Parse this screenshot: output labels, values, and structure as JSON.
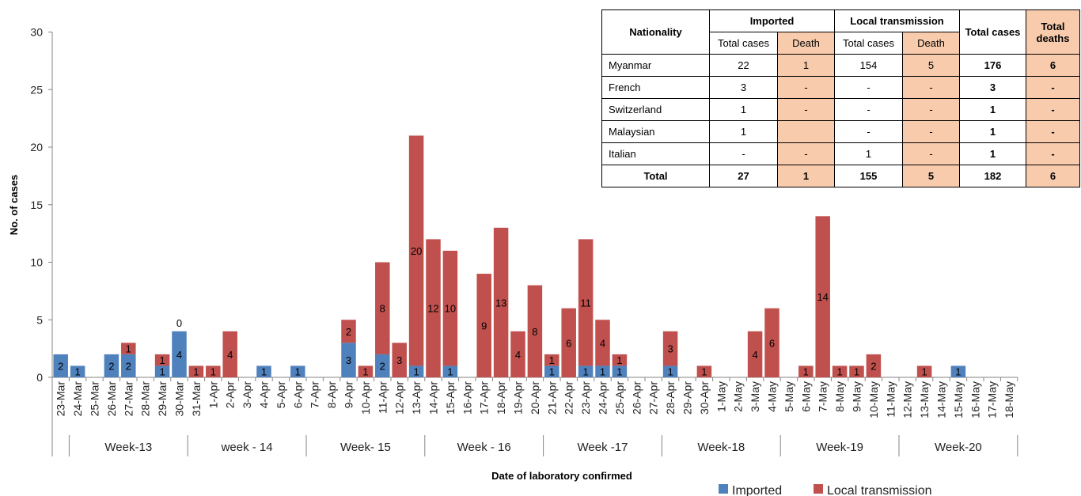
{
  "chart_data": {
    "type": "bar",
    "stacked": true,
    "ylabel": "No. of cases",
    "xlabel": "Date of laboratory confirmed",
    "ylim": [
      0,
      30
    ],
    "yticks": [
      0,
      5,
      10,
      15,
      20,
      25,
      30
    ],
    "legend_position": "bottom-right",
    "categories": [
      "23-Mar",
      "24-Mar",
      "25-Mar",
      "26-Mar",
      "27-Mar",
      "28-Mar",
      "29-Mar",
      "30-Mar",
      "31-Mar",
      "1-Apr",
      "2-Apr",
      "3-Apr",
      "4-Apr",
      "5-Apr",
      "6-Apr",
      "7-Apr",
      "8-Apr",
      "9-Apr",
      "10-Apr",
      "11-Apr",
      "12-Apr",
      "13-Apr",
      "14-Apr",
      "15-Apr",
      "16-Apr",
      "17-Apr",
      "18-Apr",
      "19-Apr",
      "20-Apr",
      "21-Apr",
      "22-Apr",
      "23-Apr",
      "24-Apr",
      "25-Apr",
      "26-Apr",
      "27-Apr",
      "28-Apr",
      "29-Apr",
      "30-Apr",
      "1-May",
      "2-May",
      "3-May",
      "4-May",
      "5-May",
      "6-May",
      "7-May",
      "8-May",
      "9-May",
      "10-May",
      "11-May",
      "12-May",
      "13-May",
      "14-May",
      "15-May",
      "16-May",
      "17-May",
      "18-May"
    ],
    "series": [
      {
        "name": "Imported",
        "color": "#4f81bd",
        "values": [
          2,
          1,
          0,
          2,
          2,
          0,
          1,
          4,
          0,
          0,
          0,
          0,
          1,
          0,
          1,
          0,
          0,
          3,
          0,
          2,
          0,
          1,
          0,
          1,
          0,
          0,
          0,
          0,
          0,
          1,
          0,
          1,
          1,
          1,
          0,
          0,
          1,
          0,
          0,
          0,
          0,
          0,
          0,
          0,
          0,
          0,
          0,
          0,
          0,
          0,
          0,
          0,
          0,
          1,
          0,
          0,
          0
        ]
      },
      {
        "name": "Local transmission",
        "color": "#c0504d",
        "values": [
          0,
          0,
          0,
          0,
          1,
          0,
          1,
          0,
          1,
          1,
          4,
          0,
          0,
          0,
          0,
          0,
          0,
          2,
          1,
          8,
          3,
          20,
          12,
          10,
          0,
          9,
          13,
          4,
          8,
          1,
          6,
          11,
          4,
          1,
          0,
          0,
          3,
          0,
          1,
          0,
          0,
          4,
          6,
          0,
          1,
          14,
          1,
          1,
          2,
          0,
          0,
          1,
          0,
          0,
          0,
          0,
          0
        ]
      }
    ],
    "imported_labels": [
      2,
      1,
      null,
      2,
      2,
      null,
      1,
      4,
      null,
      null,
      null,
      null,
      1,
      null,
      1,
      null,
      null,
      3,
      null,
      2,
      null,
      1,
      null,
      1,
      null,
      null,
      null,
      null,
      null,
      1,
      null,
      1,
      1,
      1,
      null,
      null,
      1,
      null,
      null,
      null,
      null,
      null,
      null,
      null,
      null,
      null,
      null,
      null,
      null,
      null,
      null,
      null,
      null,
      1,
      null,
      null,
      null
    ],
    "local_labels": [
      null,
      null,
      null,
      null,
      1,
      null,
      1,
      0,
      1,
      1,
      4,
      null,
      null,
      null,
      null,
      null,
      null,
      2,
      1,
      8,
      3,
      20,
      12,
      10,
      null,
      9,
      13,
      4,
      8,
      1,
      6,
      11,
      4,
      1,
      null,
      null,
      3,
      null,
      1,
      null,
      null,
      4,
      6,
      null,
      1,
      14,
      1,
      1,
      2,
      null,
      null,
      1,
      null,
      null,
      null,
      null,
      null
    ],
    "weeks": [
      {
        "label": "Week-13",
        "start": 1,
        "end": 7
      },
      {
        "label": "week - 14",
        "start": 8,
        "end": 14
      },
      {
        "label": "Week- 15",
        "start": 15,
        "end": 21
      },
      {
        "label": "Week - 16",
        "start": 22,
        "end": 28
      },
      {
        "label": "Week -17",
        "start": 29,
        "end": 35
      },
      {
        "label": "Week-18",
        "start": 36,
        "end": 42
      },
      {
        "label": "Week-19",
        "start": 43,
        "end": 49
      },
      {
        "label": "Week-20",
        "start": 50,
        "end": 56
      }
    ]
  },
  "table": {
    "header": {
      "nationality": "Nationality",
      "imported": "Imported",
      "local": "Local transmission",
      "total_cases": "Total cases",
      "total_deaths": "Total deaths",
      "sub_total_cases": "Total cases",
      "sub_death": "Death"
    },
    "rows": [
      {
        "name": "Myanmar",
        "imp_cases": "22",
        "imp_death": "1",
        "loc_cases": "154",
        "loc_death": "5",
        "total_cases": "176",
        "total_deaths": "6"
      },
      {
        "name": "French",
        "imp_cases": "3",
        "imp_death": "-",
        "loc_cases": "-",
        "loc_death": "-",
        "total_cases": "3",
        "total_deaths": "-"
      },
      {
        "name": "Switzerland",
        "imp_cases": "1",
        "imp_death": "-",
        "loc_cases": "-",
        "loc_death": "-",
        "total_cases": "1",
        "total_deaths": "-"
      },
      {
        "name": "Malaysian",
        "imp_cases": "1",
        "imp_death": "",
        "loc_cases": "-",
        "loc_death": "-",
        "total_cases": "1",
        "total_deaths": "-"
      },
      {
        "name": "Italian",
        "imp_cases": "-",
        "imp_death": "-",
        "loc_cases": "1",
        "loc_death": "-",
        "total_cases": "1",
        "total_deaths": "-"
      }
    ],
    "total_row": {
      "name": "Total",
      "imp_cases": "27",
      "imp_death": "1",
      "loc_cases": "155",
      "loc_death": "5",
      "total_cases": "182",
      "total_deaths": "6"
    }
  }
}
